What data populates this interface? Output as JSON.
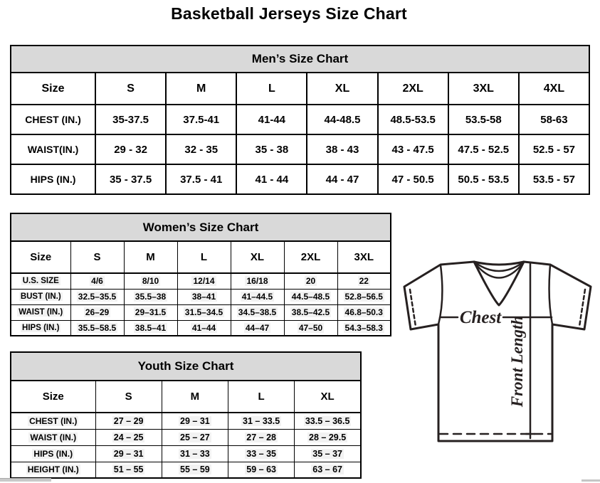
{
  "page": {
    "title": "Basketball Jerseys Size Chart"
  },
  "tables": {
    "men": {
      "title": "Men’s Size Chart",
      "columns": [
        "Size",
        "S",
        "M",
        "L",
        "XL",
        "2XL",
        "3XL",
        "4XL"
      ],
      "rows": [
        {
          "label": "CHEST (IN.)",
          "values": [
            "35-37.5",
            "37.5-41",
            "41-44",
            "44-48.5",
            "48.5-53.5",
            "53.5-58",
            "58-63"
          ]
        },
        {
          "label": "WAIST(IN.)",
          "values": [
            "29 - 32",
            "32 - 35",
            "35 - 38",
            "38 - 43",
            "43 - 47.5",
            "47.5 - 52.5",
            "52.5 - 57"
          ]
        },
        {
          "label": "HIPS (IN.)",
          "values": [
            "35 - 37.5",
            "37.5 - 41",
            "41 - 44",
            "44 - 47",
            "47 - 50.5",
            "50.5 - 53.5",
            "53.5 - 57"
          ]
        }
      ]
    },
    "women": {
      "title": "Women’s Size Chart",
      "columns": [
        "Size",
        "S",
        "M",
        "L",
        "XL",
        "2XL",
        "3XL"
      ],
      "rows": [
        {
          "label": "U.S. SIZE",
          "values": [
            "4/6",
            "8/10",
            "12/14",
            "16/18",
            "20",
            "22"
          ]
        },
        {
          "label": "BUST (IN.)",
          "values": [
            "32.5–35.5",
            "35.5–38",
            "38–41",
            "41–44.5",
            "44.5–48.5",
            "52.8–56.5"
          ]
        },
        {
          "label": "WAIST (IN.)",
          "values": [
            "26–29",
            "29–31.5",
            "31.5–34.5",
            "34.5–38.5",
            "38.5–42.5",
            "46.8–50.3"
          ]
        },
        {
          "label": "HIPS (IN.)",
          "values": [
            "35.5–58.5",
            "38.5–41",
            "41–44",
            "44–47",
            "47–50",
            "54.3–58.3"
          ]
        }
      ]
    },
    "youth": {
      "title": "Youth Size Chart",
      "columns": [
        "Size",
        "S",
        "M",
        "L",
        "XL"
      ],
      "rows": [
        {
          "label": "CHEST (IN.)",
          "values": [
            "27 – 29",
            "29 – 31",
            "31 – 33.5",
            "33.5 – 36.5"
          ]
        },
        {
          "label": "WAIST (IN.)",
          "values": [
            "24 – 25",
            "25 – 27",
            "27 – 28",
            "28 – 29.5"
          ]
        },
        {
          "label": "HIPS (IN.)",
          "values": [
            "29 – 31",
            "31 – 33",
            "33 – 35",
            "35 – 37"
          ]
        },
        {
          "label": "HEIGHT (IN.)",
          "values": [
            "51 – 55",
            "55 – 59",
            "59 – 63",
            "63 – 67"
          ]
        }
      ]
    }
  },
  "diagram": {
    "chest_label": "Chest",
    "front_length_label": "Front Length"
  },
  "colors": {
    "band_background": "#d9d9d9",
    "table_border": "#000000",
    "text": "#000000",
    "cell_highlight": "#f2f2f2",
    "jersey_stroke": "#262020",
    "scrollbar_gray": "#c9c9c9"
  }
}
